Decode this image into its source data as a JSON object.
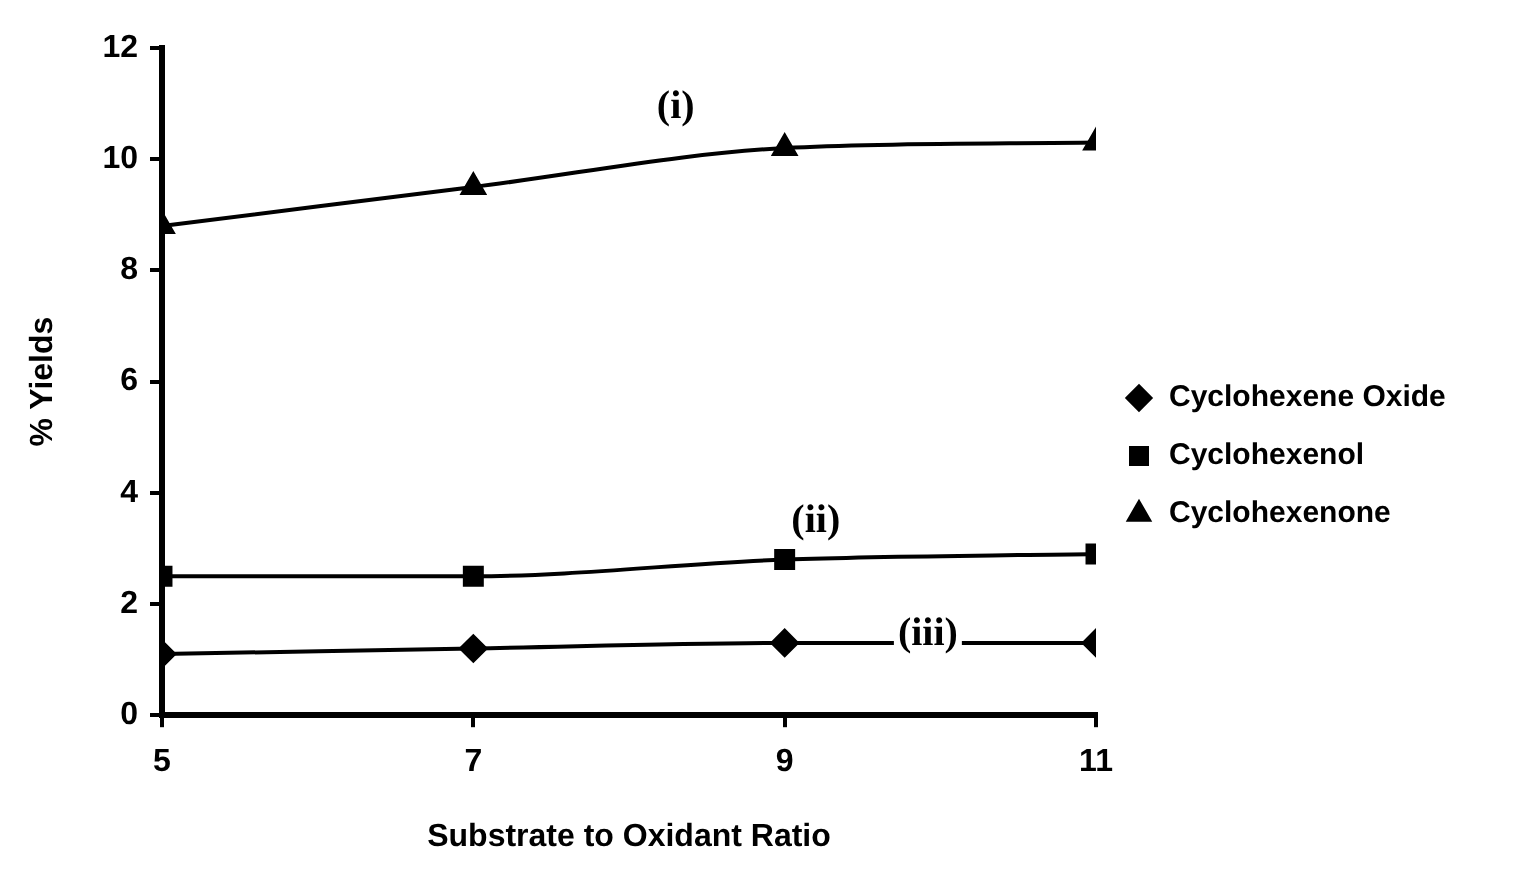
{
  "chart_data": {
    "type": "line",
    "xlabel": "Substrate to Oxidant Ratio",
    "ylabel": "% Yields",
    "x": [
      5,
      7,
      9,
      11
    ],
    "xlim": [
      5,
      11
    ],
    "xticks": [
      5,
      7,
      9,
      11
    ],
    "ylim": [
      0,
      12
    ],
    "yticks": [
      0,
      2,
      4,
      6,
      8,
      10,
      12
    ],
    "series": [
      {
        "name": "Cyclohexene Oxide",
        "color": "#000000",
        "marker": "diamond",
        "values": [
          1.1,
          1.2,
          1.3,
          1.3
        ]
      },
      {
        "name": "Cyclohexenol",
        "color": "#000000",
        "marker": "square",
        "values": [
          2.5,
          2.5,
          2.8,
          2.9
        ]
      },
      {
        "name": "Cyclohexenone",
        "color": "#000000",
        "marker": "triangle",
        "values": [
          8.8,
          9.5,
          10.2,
          10.3
        ]
      }
    ],
    "annotations": [
      "(i)",
      "(ii)",
      "(iii)"
    ],
    "grid": false,
    "legend": "right",
    "line_style": "solid"
  }
}
